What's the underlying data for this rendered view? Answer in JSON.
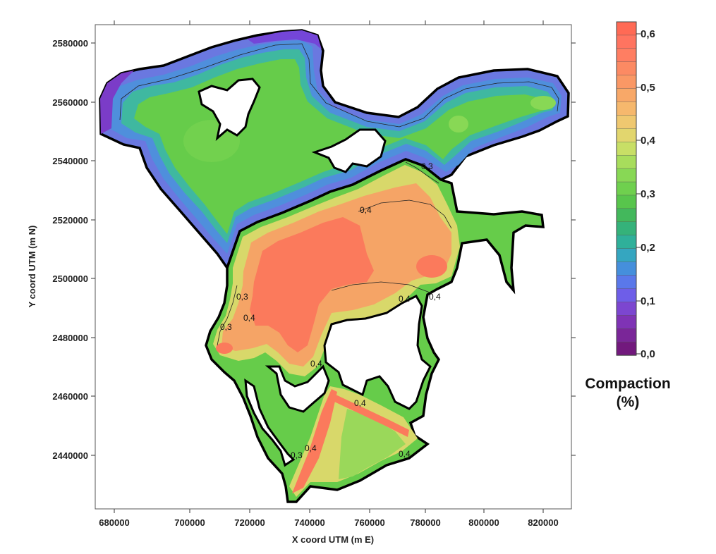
{
  "x_axis": {
    "title": "X coord UTM (m E)",
    "ticks": [
      "680000",
      "700000",
      "720000",
      "740000",
      "760000",
      "780000",
      "800000",
      "820000"
    ]
  },
  "y_axis": {
    "title": "Y coord UTM (m N)",
    "ticks": [
      "2580000",
      "2560000",
      "2540000",
      "2520000",
      "2500000",
      "2480000",
      "2460000",
      "2440000"
    ]
  },
  "legend": {
    "title_line1": "Compaction",
    "title_line2": "(%)",
    "ticks": [
      "0,6",
      "0,5",
      "0,4",
      "0,3",
      "0,2",
      "0,1",
      "0,0"
    ],
    "color_steps": [
      "#ff6a55",
      "#ff7460",
      "#ff7e62",
      "#fc8a63",
      "#fa9865",
      "#f8a868",
      "#f6b86d",
      "#efc870",
      "#e2d66e",
      "#c8df66",
      "#a8dd5c",
      "#88d855",
      "#6fd04e",
      "#58c54c",
      "#43b85c",
      "#35b27a",
      "#2fb09a",
      "#35a6c0",
      "#458fdc",
      "#5a78ea",
      "#6e5ee8",
      "#7c46d0",
      "#7f33b5",
      "#7a2698",
      "#72197d"
    ]
  },
  "contour_labels": [
    "0,3",
    "0,4",
    "0,4",
    "0,4",
    "0,3",
    "0,3",
    "0,4",
    "0,4",
    "0,4",
    "0,4",
    "0,3",
    "0,4"
  ],
  "colors": {
    "green": "#66cc4a",
    "light_green": "#7fd853",
    "blue_edge": "#6a78e0",
    "purple_edge": "#7b3cc8",
    "teal": "#3fb8a0",
    "yellow": "#d8d86a",
    "orange": "#f5a466",
    "red": "#fb7a5c",
    "outline": "#000000"
  }
}
